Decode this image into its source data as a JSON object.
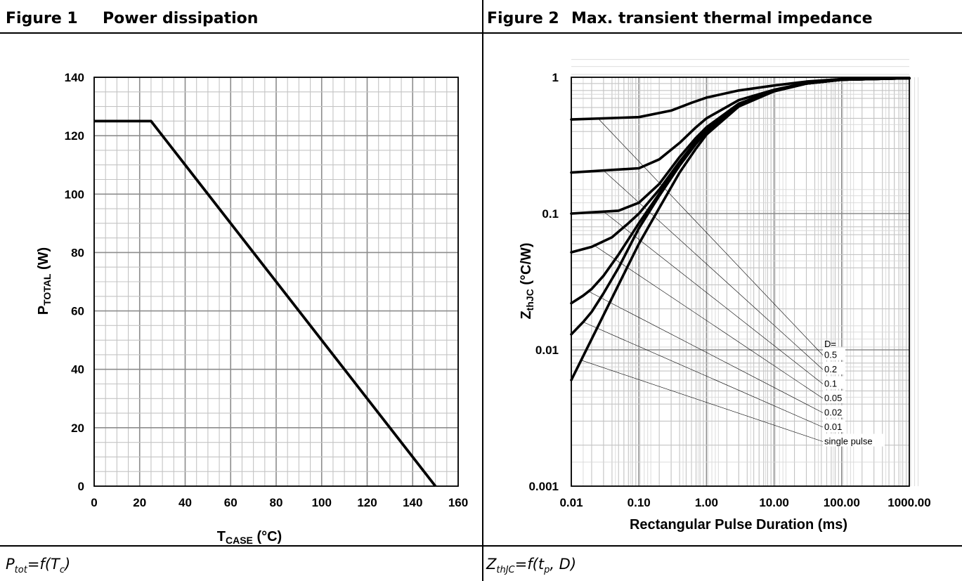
{
  "figure1": {
    "number": "Figure 1",
    "title": "Power dissipation",
    "caption": {
      "main": "P",
      "sub": "tot",
      "mid": "=f(T",
      "sub2": "c",
      "end": ")"
    },
    "xlabel": {
      "main": "T",
      "sub": "CASE",
      "end": " (°C)"
    },
    "ylabel": {
      "main": "P",
      "sub": "TOTAL",
      "end": " (W)"
    }
  },
  "figure2": {
    "number": "Figure 2",
    "title": "Max. transient thermal impedance",
    "caption": {
      "main": "Z",
      "sub": "thJC",
      "mid": "=f(t",
      "sub2": "p",
      "end": ", D)"
    },
    "xlabel": "Rectangular Pulse Duration (ms)",
    "ylabel": {
      "main": "Z",
      "sub": "thJC",
      "end": " (°C/W)"
    }
  },
  "chart_data": [
    {
      "type": "line",
      "title": "Power dissipation",
      "xlabel": "TCASE (°C)",
      "ylabel": "PTOTAL (W)",
      "xlim": [
        0,
        160
      ],
      "ylim": [
        0,
        140
      ],
      "xticks": [
        "0",
        "20",
        "40",
        "60",
        "80",
        "100",
        "120",
        "140",
        "160"
      ],
      "yticks": [
        "0",
        "20",
        "40",
        "60",
        "80",
        "100",
        "120",
        "140"
      ],
      "grid": true,
      "series": [
        {
          "x": [
            0,
            25,
            150
          ],
          "y": [
            125,
            125,
            0
          ]
        }
      ]
    },
    {
      "type": "line",
      "title": "Max. transient thermal impedance",
      "xlabel": "Rectangular Pulse Duration (ms)",
      "ylabel": "ZthJC (°C/W)",
      "xscale": "log",
      "yscale": "log",
      "xlim": [
        0.01,
        1000
      ],
      "ylim": [
        0.001,
        1
      ],
      "xticks": [
        "0.01",
        "0.10",
        "1.00",
        "10.00",
        "100.00",
        "1000.00"
      ],
      "yticks": [
        "0.001",
        "0.01",
        "0.1",
        "1"
      ],
      "grid": true,
      "legend_title": "D=",
      "legend_position": "lower-right",
      "series": [
        {
          "name": "0.5",
          "x": [
            0.01,
            0.1,
            0.3,
            0.6,
            1,
            3,
            10,
            30,
            100,
            1000
          ],
          "y": [
            0.49,
            0.51,
            0.57,
            0.65,
            0.71,
            0.8,
            0.87,
            0.93,
            0.97,
            0.985
          ]
        },
        {
          "name": "0.2",
          "x": [
            0.01,
            0.1,
            0.2,
            0.4,
            0.7,
            1,
            3,
            10,
            30,
            100,
            1000
          ],
          "y": [
            0.2,
            0.215,
            0.25,
            0.33,
            0.43,
            0.5,
            0.68,
            0.81,
            0.91,
            0.96,
            0.985
          ]
        },
        {
          "name": "0.1",
          "x": [
            0.01,
            0.05,
            0.1,
            0.2,
            0.4,
            0.7,
            1,
            3,
            10,
            30,
            100,
            1000
          ],
          "y": [
            0.1,
            0.105,
            0.12,
            0.165,
            0.26,
            0.36,
            0.43,
            0.64,
            0.8,
            0.9,
            0.96,
            0.985
          ]
        },
        {
          "name": "0.05",
          "x": [
            0.01,
            0.02,
            0.04,
            0.07,
            0.1,
            0.2,
            0.4,
            0.7,
            1,
            3,
            10,
            30,
            100,
            1000
          ],
          "y": [
            0.052,
            0.057,
            0.067,
            0.085,
            0.1,
            0.15,
            0.24,
            0.34,
            0.41,
            0.63,
            0.79,
            0.9,
            0.96,
            0.985
          ]
        },
        {
          "name": "0.02",
          "x": [
            0.01,
            0.015,
            0.02,
            0.03,
            0.05,
            0.1,
            0.2,
            0.4,
            0.7,
            1,
            3,
            10,
            30,
            100,
            1000
          ],
          "y": [
            0.022,
            0.025,
            0.028,
            0.035,
            0.05,
            0.085,
            0.14,
            0.23,
            0.33,
            0.4,
            0.62,
            0.79,
            0.9,
            0.96,
            0.985
          ]
        },
        {
          "name": "0.01",
          "x": [
            0.01,
            0.015,
            0.02,
            0.03,
            0.05,
            0.1,
            0.2,
            0.4,
            0.7,
            1,
            3,
            10,
            30,
            100,
            1000
          ],
          "y": [
            0.013,
            0.016,
            0.019,
            0.026,
            0.04,
            0.078,
            0.135,
            0.225,
            0.325,
            0.4,
            0.62,
            0.79,
            0.9,
            0.96,
            0.985
          ]
        },
        {
          "name": "single pulse",
          "x": [
            0.01,
            0.02,
            0.05,
            0.1,
            0.2,
            0.4,
            0.7,
            1,
            3,
            10,
            30,
            100,
            1000
          ],
          "y": [
            0.006,
            0.012,
            0.03,
            0.06,
            0.11,
            0.2,
            0.3,
            0.38,
            0.61,
            0.79,
            0.9,
            0.96,
            0.985
          ]
        }
      ]
    }
  ]
}
